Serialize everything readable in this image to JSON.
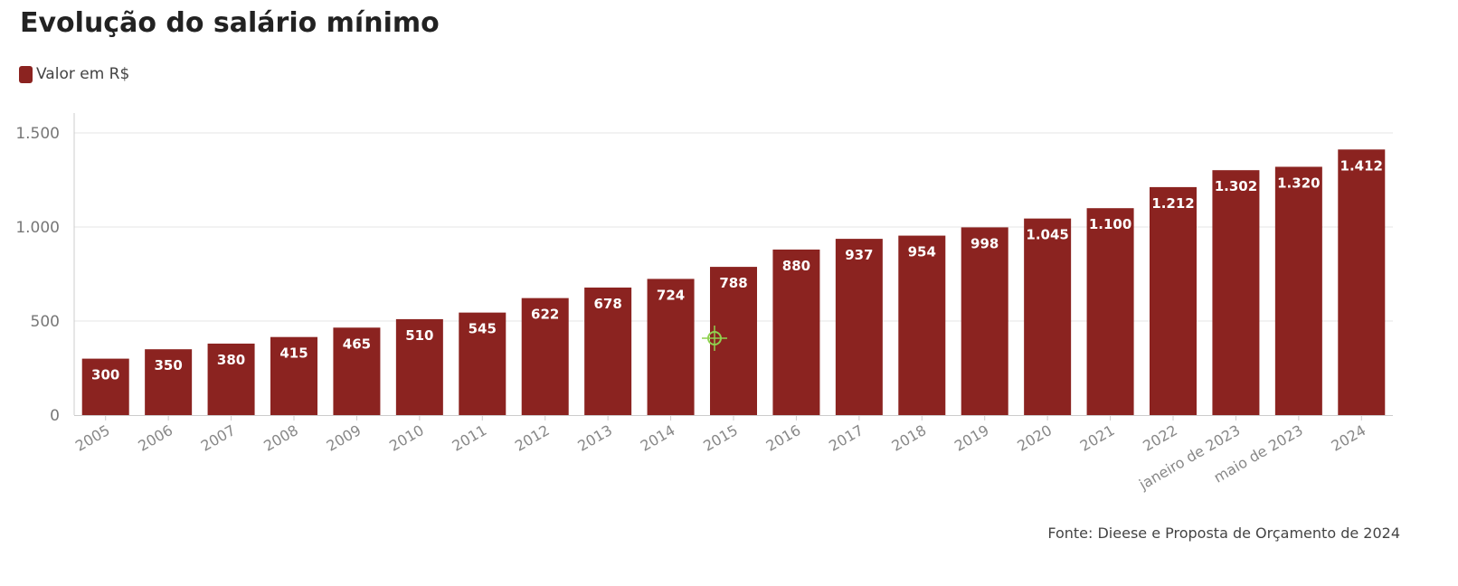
{
  "chart_data": {
    "type": "bar",
    "title": "Evolução do salário mínimo",
    "legend": {
      "label": "Valor em R$",
      "placement": "top-left"
    },
    "categories": [
      "2005",
      "2006",
      "2007",
      "2008",
      "2009",
      "2010",
      "2011",
      "2012",
      "2013",
      "2014",
      "2015",
      "2016",
      "2017",
      "2018",
      "2019",
      "2020",
      "2021",
      "2022",
      "janeiro de 2023",
      "maio de 2023",
      "2024"
    ],
    "values": [
      300,
      350,
      380,
      415,
      465,
      510,
      545,
      622,
      678,
      724,
      788,
      880,
      937,
      954,
      998,
      1045,
      1100,
      1212,
      1302,
      1320,
      1412
    ],
    "data_labels": [
      "300",
      "350",
      "380",
      "415",
      "465",
      "510",
      "545",
      "622",
      "678",
      "724",
      "788",
      "880",
      "937",
      "954",
      "998",
      "1.045",
      "1.100",
      "1.212",
      "1.302",
      "1.320",
      "1.412"
    ],
    "yticks": [
      0,
      500,
      1000,
      1500
    ],
    "ytick_labels": [
      "0",
      "500",
      "1.000",
      "1.500"
    ],
    "ylim": [
      0,
      1600
    ],
    "grid": true,
    "xlabel": "",
    "ylabel": ""
  },
  "colors": {
    "bar": "#8b2320",
    "grid": "#e6e6e6",
    "axis": "#cccccc"
  },
  "source": "Fonte: Dieese e Proposta de Orçamento de 2024"
}
